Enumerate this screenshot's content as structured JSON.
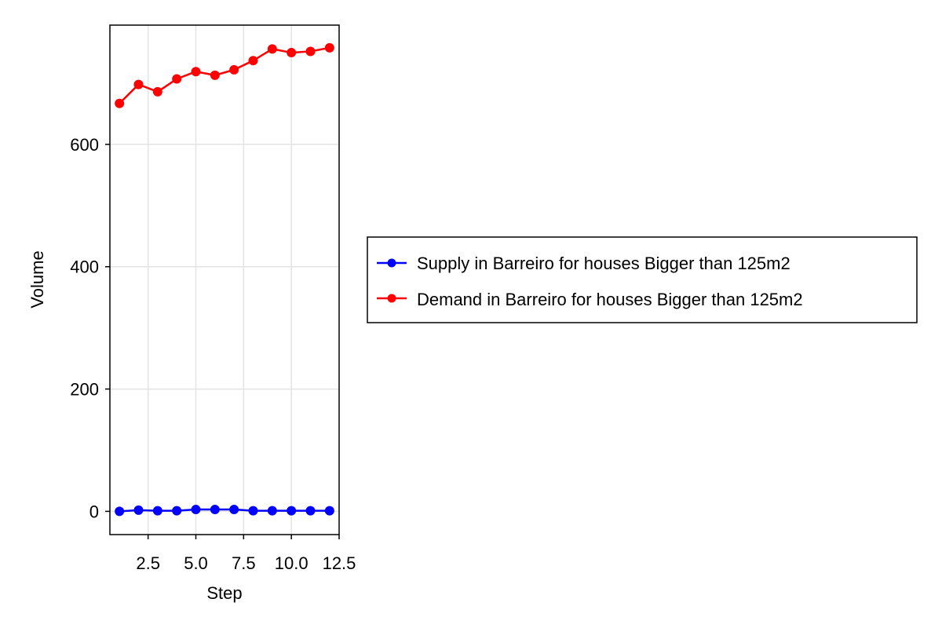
{
  "chart_data": {
    "type": "line",
    "title": "",
    "xlabel": "Step",
    "ylabel": "Volume",
    "xlim": [
      0.5,
      12.5
    ],
    "ylim": [
      -38,
      795
    ],
    "xticks": [
      2.5,
      5.0,
      7.5,
      10.0,
      12.5
    ],
    "xtick_labels": [
      "2.5",
      "5.0",
      "7.5",
      "10.0",
      "12.5"
    ],
    "yticks": [
      0,
      200,
      400,
      600
    ],
    "ytick_labels": [
      "0",
      "200",
      "400",
      "600"
    ],
    "grid": true,
    "legend_position": "right",
    "x": [
      1,
      2,
      3,
      4,
      5,
      6,
      7,
      8,
      9,
      10,
      11,
      12
    ],
    "series": [
      {
        "name": "Supply in Barreiro for houses Bigger than 125m2",
        "color": "#0000ff",
        "values": [
          0,
          2,
          1,
          1,
          3,
          3,
          3,
          1,
          1,
          1,
          1,
          1
        ]
      },
      {
        "name": "Demand in Barreiro for houses Bigger than 125m2",
        "color": "#ff0000",
        "values": [
          667,
          698,
          686,
          707,
          719,
          713,
          722,
          737,
          756,
          750,
          752,
          758
        ]
      }
    ]
  }
}
